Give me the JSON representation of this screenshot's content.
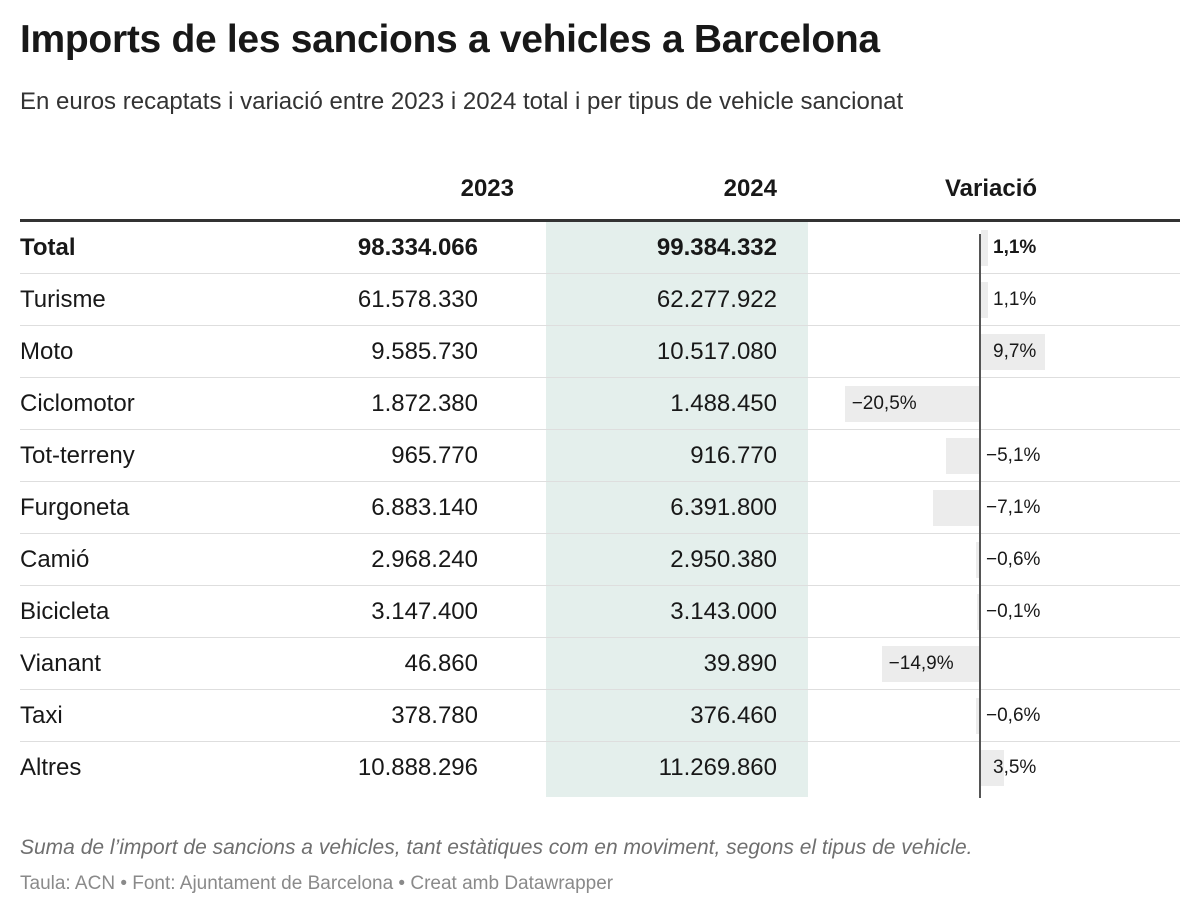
{
  "title": "Imports de les sancions a vehicles a Barcelona",
  "subtitle": "En euros recaptats i variació entre 2023 i 2024 total i per tipus de vehicle sancionat",
  "colors": {
    "highlight_column": "#e4efec",
    "variation_bar": "#ececec",
    "axis": "#555555",
    "header_rule": "#333333"
  },
  "chart_data": {
    "type": "table",
    "columns": [
      "",
      "2023",
      "2024",
      "Variació"
    ],
    "variation_unit": "%",
    "rows": [
      {
        "label": "Total",
        "y2023": "98.334.066",
        "y2024": "99.384.332",
        "variation": 1.1,
        "variation_label": "1,1%",
        "bold": true
      },
      {
        "label": "Turisme",
        "y2023": "61.578.330",
        "y2024": "62.277.922",
        "variation": 1.1,
        "variation_label": "1,1%"
      },
      {
        "label": "Moto",
        "y2023": "9.585.730",
        "y2024": "10.517.080",
        "variation": 9.7,
        "variation_label": "9,7%"
      },
      {
        "label": "Ciclomotor",
        "y2023": "1.872.380",
        "y2024": "1.488.450",
        "variation": -20.5,
        "variation_label": "−20,5%"
      },
      {
        "label": "Tot-terreny",
        "y2023": "965.770",
        "y2024": "916.770",
        "variation": -5.1,
        "variation_label": "−5,1%"
      },
      {
        "label": "Furgoneta",
        "y2023": "6.883.140",
        "y2024": "6.391.800",
        "variation": -7.1,
        "variation_label": "−7,1%"
      },
      {
        "label": "Camió",
        "y2023": "2.968.240",
        "y2024": "2.950.380",
        "variation": -0.6,
        "variation_label": "−0,6%"
      },
      {
        "label": "Bicicleta",
        "y2023": "3.147.400",
        "y2024": "3.143.000",
        "variation": -0.1,
        "variation_label": "−0,1%"
      },
      {
        "label": "Vianant",
        "y2023": "46.860",
        "y2024": "39.890",
        "variation": -14.9,
        "variation_label": "−14,9%"
      },
      {
        "label": "Taxi",
        "y2023": "378.780",
        "y2024": "376.460",
        "variation": -0.6,
        "variation_label": "−0,6%"
      },
      {
        "label": "Altres",
        "y2023": "10.888.296",
        "y2024": "11.269.860",
        "variation": 3.5,
        "variation_label": "3,5%"
      }
    ]
  },
  "note": "Suma de l’import de sancions a vehicles, tant estàtiques com en moviment, segons el tipus de vehicle.",
  "footer": "Taula: ACN • Font: Ajuntament de Barcelona • Creat amb Datawrapper"
}
